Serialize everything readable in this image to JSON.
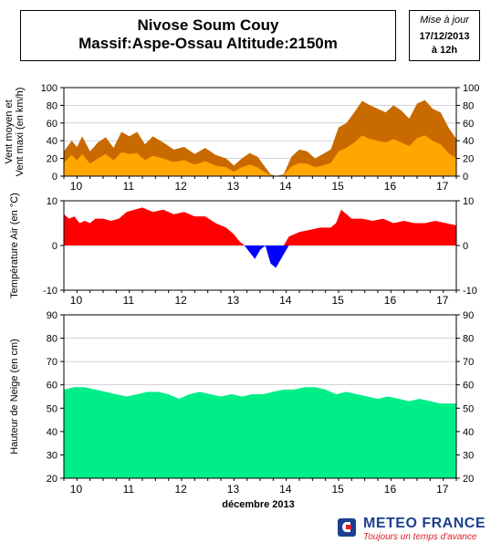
{
  "header": {
    "title_line1": "Nivose Soum Couy",
    "title_line2": "Massif:Aspe-Ossau Altitude:2150m",
    "update_label": "Mise à jour",
    "update_date": "17/12/2013",
    "update_time": "à 12h"
  },
  "footer": {
    "brand": "METEO FRANCE",
    "tagline": "Toujours un temps d'avance"
  },
  "colors": {
    "wind_max": "#c96a00",
    "wind_mean": "#ffa600",
    "temp_pos": "#ff0000",
    "temp_neg": "#0000ff",
    "snow": "#00ee88",
    "grid": "#bbbbbb"
  },
  "chart_data": [
    {
      "type": "area",
      "ylabel": "Vent moyen et\nVent maxi (en km/h)",
      "ylim": [
        0,
        100
      ],
      "yticks": [
        0,
        20,
        40,
        60,
        80,
        100
      ],
      "xlim": [
        9.8,
        17.3
      ],
      "xticks": [
        10,
        11,
        12,
        13,
        14,
        15,
        16,
        17
      ],
      "grid": true,
      "series": [
        {
          "role": "max",
          "x": [
            9.8,
            9.95,
            10.05,
            10.15,
            10.3,
            10.45,
            10.6,
            10.75,
            10.9,
            11.05,
            11.2,
            11.35,
            11.5,
            11.7,
            11.9,
            12.1,
            12.3,
            12.5,
            12.7,
            12.9,
            13.05,
            13.2,
            13.35,
            13.5,
            13.65,
            13.75,
            13.85,
            14.0,
            14.15,
            14.3,
            14.45,
            14.6,
            14.75,
            14.9,
            15.05,
            15.2,
            15.35,
            15.5,
            15.65,
            15.8,
            15.95,
            16.1,
            16.25,
            16.4,
            16.55,
            16.7,
            16.85,
            17.0,
            17.15,
            17.3
          ],
          "values": [
            28,
            40,
            33,
            45,
            28,
            38,
            44,
            32,
            50,
            45,
            50,
            36,
            45,
            38,
            30,
            33,
            25,
            32,
            24,
            20,
            12,
            20,
            26,
            22,
            10,
            2,
            0,
            2,
            22,
            30,
            28,
            20,
            25,
            30,
            55,
            60,
            72,
            85,
            80,
            76,
            72,
            80,
            74,
            65,
            82,
            86,
            76,
            72,
            55,
            42
          ]
        },
        {
          "role": "mean",
          "x": [
            9.8,
            9.95,
            10.05,
            10.15,
            10.3,
            10.45,
            10.6,
            10.75,
            10.9,
            11.05,
            11.2,
            11.35,
            11.5,
            11.7,
            11.9,
            12.1,
            12.3,
            12.5,
            12.7,
            12.9,
            13.05,
            13.2,
            13.35,
            13.5,
            13.65,
            13.75,
            13.85,
            14.0,
            14.15,
            14.3,
            14.45,
            14.6,
            14.75,
            14.9,
            15.05,
            15.2,
            15.35,
            15.5,
            15.65,
            15.8,
            15.95,
            16.1,
            16.25,
            16.4,
            16.55,
            16.7,
            16.85,
            17.0,
            17.15,
            17.3
          ],
          "values": [
            15,
            24,
            18,
            25,
            14,
            20,
            25,
            18,
            27,
            25,
            26,
            18,
            23,
            20,
            16,
            18,
            13,
            17,
            12,
            10,
            5,
            10,
            13,
            10,
            4,
            1,
            0,
            1,
            11,
            15,
            14,
            10,
            12,
            15,
            28,
            32,
            38,
            46,
            42,
            40,
            38,
            42,
            38,
            34,
            43,
            46,
            40,
            36,
            26,
            20
          ]
        }
      ]
    },
    {
      "type": "area",
      "ylabel": "Température Air (en °C)",
      "ylim": [
        -10,
        10
      ],
      "yticks": [
        -10,
        0,
        10
      ],
      "xlim": [
        9.8,
        17.3
      ],
      "xticks": [
        10,
        11,
        12,
        13,
        14,
        15,
        16,
        17
      ],
      "grid": true,
      "series": [
        {
          "role": "temperature",
          "x": [
            9.8,
            9.9,
            10.0,
            10.1,
            10.2,
            10.3,
            10.4,
            10.55,
            10.7,
            10.85,
            11.0,
            11.15,
            11.3,
            11.5,
            11.7,
            11.9,
            12.1,
            12.3,
            12.5,
            12.7,
            12.9,
            13.05,
            13.15,
            13.25,
            13.35,
            13.45,
            13.55,
            13.65,
            13.75,
            13.85,
            13.95,
            14.0,
            14.1,
            14.3,
            14.5,
            14.7,
            14.9,
            15.0,
            15.1,
            15.3,
            15.5,
            15.7,
            15.9,
            16.1,
            16.3,
            16.5,
            16.7,
            16.9,
            17.1,
            17.3
          ],
          "values": [
            7,
            6,
            6.5,
            5,
            5.5,
            5,
            6,
            6,
            5.5,
            6,
            7.5,
            8,
            8.5,
            7.5,
            8,
            7,
            7.5,
            6.5,
            6.5,
            5,
            4,
            2.5,
            1,
            0,
            -1.5,
            -3,
            -1,
            0,
            -4,
            -5,
            -3,
            -2,
            2,
            3,
            3.5,
            4,
            4,
            5,
            8,
            6,
            6,
            5.5,
            6,
            5,
            5.5,
            5,
            5,
            5.5,
            5,
            4.5
          ]
        }
      ]
    },
    {
      "type": "area",
      "ylabel": "Hauteur de Neige (en cm)",
      "xlabel": "décembre 2013",
      "ylim": [
        20,
        90
      ],
      "yticks": [
        20,
        30,
        40,
        50,
        60,
        70,
        80,
        90
      ],
      "xlim": [
        9.8,
        17.3
      ],
      "xticks": [
        10,
        11,
        12,
        13,
        14,
        15,
        16,
        17
      ],
      "grid": true,
      "series": [
        {
          "role": "snow_depth",
          "x": [
            9.8,
            10.0,
            10.2,
            10.4,
            10.6,
            10.8,
            11.0,
            11.2,
            11.4,
            11.6,
            11.8,
            12.0,
            12.2,
            12.4,
            12.6,
            12.8,
            13.0,
            13.2,
            13.4,
            13.6,
            13.8,
            14.0,
            14.2,
            14.4,
            14.6,
            14.8,
            15.0,
            15.2,
            15.4,
            15.6,
            15.8,
            16.0,
            16.2,
            16.4,
            16.6,
            16.8,
            17.0,
            17.3
          ],
          "values": [
            58,
            59,
            59,
            58,
            57,
            56,
            55,
            56,
            57,
            57,
            56,
            54,
            56,
            57,
            56,
            55,
            56,
            55,
            56,
            56,
            57,
            58,
            58,
            59,
            59,
            58,
            56,
            57,
            56,
            55,
            54,
            55,
            54,
            53,
            54,
            53,
            52,
            52
          ]
        }
      ]
    }
  ]
}
